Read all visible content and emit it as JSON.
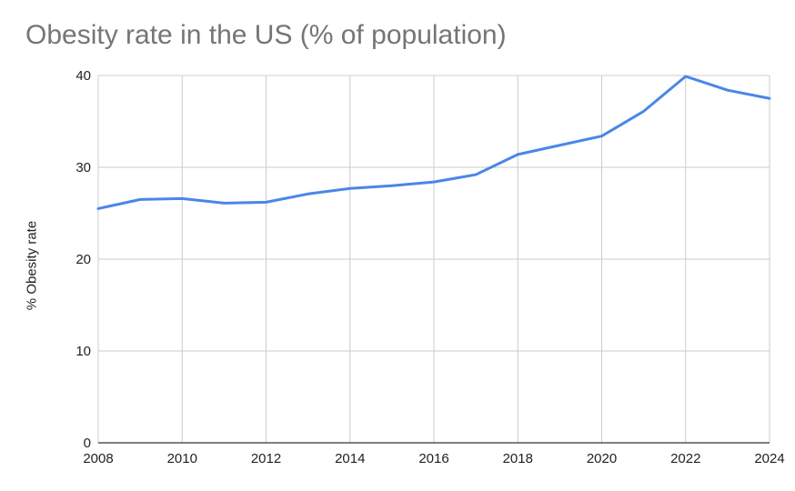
{
  "chart_data": {
    "type": "line",
    "title": "Obesity rate in the US (% of population)",
    "xlabel": "",
    "ylabel": "% Obesity rate",
    "x": [
      2008,
      2009,
      2010,
      2011,
      2012,
      2013,
      2014,
      2015,
      2016,
      2017,
      2018,
      2019,
      2020,
      2021,
      2022,
      2023,
      2024
    ],
    "series": [
      {
        "values": [
          25.5,
          26.5,
          26.6,
          26.1,
          26.2,
          27.1,
          27.7,
          28.0,
          28.4,
          29.2,
          31.4,
          32.4,
          33.4,
          36.1,
          39.9,
          38.4,
          37.5
        ]
      }
    ],
    "xlim": [
      2008,
      2024
    ],
    "ylim": [
      0,
      40
    ],
    "xticks": [
      "2008",
      "2010",
      "2012",
      "2014",
      "2016",
      "2018",
      "2020",
      "2022",
      "2024"
    ],
    "yticks": [
      "0",
      "10",
      "20",
      "30",
      "40"
    ],
    "grid": true,
    "legend": "none",
    "line_color": "#4a86e8",
    "grid_color": "#cccccc"
  }
}
